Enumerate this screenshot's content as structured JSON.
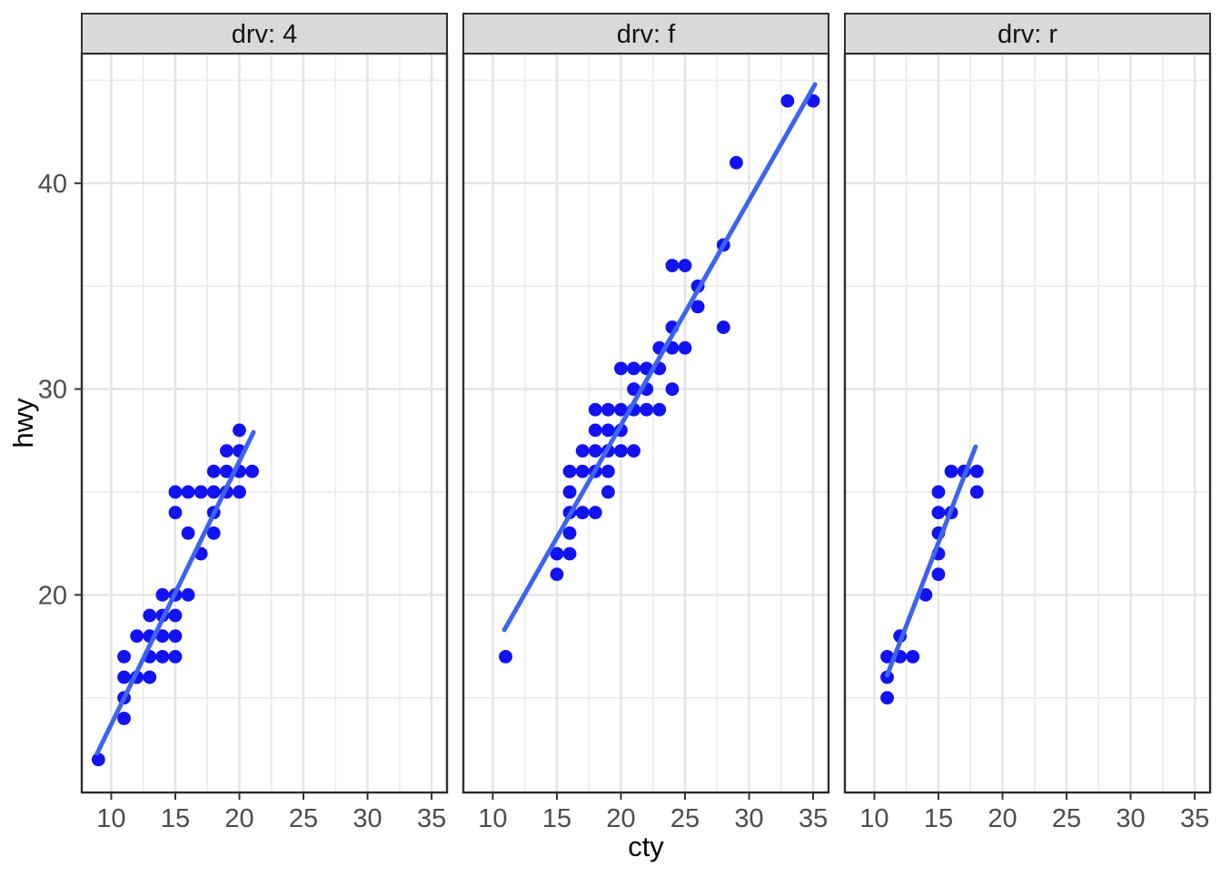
{
  "chart_data": {
    "type": "scatter",
    "title": "",
    "xlabel": "cty",
    "ylabel": "hwy",
    "facet_variable": "drv",
    "legend": "none",
    "grid": "on",
    "x_ticks": [
      10,
      15,
      20,
      25,
      30,
      35
    ],
    "y_ticks": [
      20,
      30,
      40
    ],
    "x_minor": [
      12.5,
      17.5,
      22.5,
      27.5,
      32.5
    ],
    "y_minor": [
      15,
      25,
      35,
      45
    ],
    "xlim": [
      7.7,
      36.2
    ],
    "ylim": [
      10.4,
      46.3
    ],
    "point_color": "#1213F0",
    "trend_color": "#3D63F0",
    "panel_background": "#ffffff",
    "grid_major_color": "#e4e4e4",
    "grid_minor_color": "#ececec",
    "panel_border_color": "#2e2e2e",
    "strip_fill": "#d9d9d9",
    "strip_border_color": "#2e2e2e",
    "tick_color": "#333333",
    "tick_label_color": "#4d4d4d",
    "facets": [
      {
        "label": "drv: 4",
        "points": [
          [
            9,
            12
          ],
          [
            11,
            14
          ],
          [
            11,
            15
          ],
          [
            11,
            16
          ],
          [
            11,
            17
          ],
          [
            12,
            16
          ],
          [
            12,
            18
          ],
          [
            13,
            16
          ],
          [
            13,
            17
          ],
          [
            13,
            18
          ],
          [
            13,
            19
          ],
          [
            14,
            17
          ],
          [
            14,
            18
          ],
          [
            14,
            19
          ],
          [
            14,
            20
          ],
          [
            15,
            17
          ],
          [
            15,
            18
          ],
          [
            15,
            19
          ],
          [
            15,
            20
          ],
          [
            15,
            24
          ],
          [
            15,
            25
          ],
          [
            16,
            20
          ],
          [
            16,
            23
          ],
          [
            16,
            25
          ],
          [
            17,
            22
          ],
          [
            17,
            25
          ],
          [
            18,
            23
          ],
          [
            18,
            24
          ],
          [
            18,
            25
          ],
          [
            18,
            26
          ],
          [
            19,
            25
          ],
          [
            19,
            26
          ],
          [
            19,
            27
          ],
          [
            20,
            25
          ],
          [
            20,
            26
          ],
          [
            20,
            27
          ],
          [
            20,
            28
          ],
          [
            21,
            26
          ]
        ],
        "trend_line": {
          "x": [
            8.9,
            21.1
          ],
          "y": [
            12.3,
            27.9
          ]
        }
      },
      {
        "label": "drv: f",
        "points": [
          [
            11,
            17
          ],
          [
            15,
            21
          ],
          [
            15,
            22
          ],
          [
            16,
            22
          ],
          [
            16,
            23
          ],
          [
            16,
            24
          ],
          [
            17,
            24
          ],
          [
            18,
            24
          ],
          [
            16,
            25
          ],
          [
            19,
            25
          ],
          [
            16,
            26
          ],
          [
            17,
            26
          ],
          [
            18,
            26
          ],
          [
            19,
            26
          ],
          [
            17,
            27
          ],
          [
            18,
            27
          ],
          [
            19,
            27
          ],
          [
            20,
            27
          ],
          [
            21,
            27
          ],
          [
            18,
            28
          ],
          [
            19,
            28
          ],
          [
            20,
            28
          ],
          [
            18,
            29
          ],
          [
            19,
            29
          ],
          [
            20,
            29
          ],
          [
            21,
            29
          ],
          [
            22,
            29
          ],
          [
            23,
            29
          ],
          [
            21,
            30
          ],
          [
            22,
            30
          ],
          [
            24,
            30
          ],
          [
            20,
            31
          ],
          [
            21,
            31
          ],
          [
            22,
            31
          ],
          [
            23,
            31
          ],
          [
            23,
            32
          ],
          [
            24,
            32
          ],
          [
            25,
            32
          ],
          [
            24,
            33
          ],
          [
            28,
            33
          ],
          [
            26,
            34
          ],
          [
            26,
            35
          ],
          [
            24,
            36
          ],
          [
            25,
            36
          ],
          [
            28,
            37
          ],
          [
            29,
            41
          ],
          [
            33,
            44
          ],
          [
            35,
            44
          ]
        ],
        "trend_line": {
          "x": [
            10.9,
            35.15
          ],
          "y": [
            18.3,
            44.8
          ]
        }
      },
      {
        "label": "drv: r",
        "points": [
          [
            11,
            15
          ],
          [
            11,
            16
          ],
          [
            11,
            17
          ],
          [
            12,
            17
          ],
          [
            12,
            18
          ],
          [
            13,
            17
          ],
          [
            14,
            20
          ],
          [
            15,
            21
          ],
          [
            15,
            22
          ],
          [
            15,
            23
          ],
          [
            15,
            24
          ],
          [
            15,
            25
          ],
          [
            16,
            24
          ],
          [
            16,
            26
          ],
          [
            17,
            26
          ],
          [
            18,
            25
          ],
          [
            18,
            26
          ]
        ],
        "trend_line": {
          "x": [
            11.0,
            17.9
          ],
          "y": [
            16.1,
            27.2
          ]
        }
      }
    ]
  }
}
